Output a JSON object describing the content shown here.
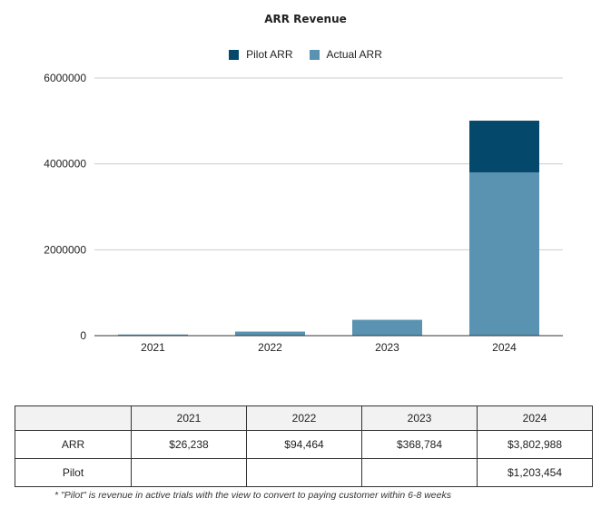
{
  "chart_data": {
    "type": "bar",
    "stacked": true,
    "title": "ARR Revenue",
    "categories": [
      "2021",
      "2022",
      "2023",
      "2024"
    ],
    "series": [
      {
        "name": "Actual ARR",
        "values": [
          26238,
          94464,
          368784,
          3802988
        ],
        "color": "#5a93b2"
      },
      {
        "name": "Pilot ARR",
        "values": [
          0,
          0,
          0,
          1203454
        ],
        "color": "#04496b"
      }
    ],
    "legend_order": [
      "Pilot ARR",
      "Actual ARR"
    ],
    "legend_position": "top",
    "ylim": [
      0,
      6000000
    ],
    "yticks": [
      0,
      2000000,
      4000000,
      6000000
    ],
    "ytick_labels": [
      "0",
      "2000000",
      "4000000",
      "6000000"
    ],
    "grid": true
  },
  "table": {
    "headers": [
      "",
      "2021",
      "2022",
      "2023",
      "2024"
    ],
    "rows": [
      {
        "label": "ARR",
        "cells": [
          "$26,238",
          "$94,464",
          "$368,784",
          "$3,802,988"
        ]
      },
      {
        "label": "Pilot",
        "cells": [
          "",
          "",
          "",
          "$1,203,454"
        ]
      }
    ]
  },
  "footnote": "* \"Pilot\" is revenue in active trials with the view to convert to paying customer within 6-8 weeks"
}
